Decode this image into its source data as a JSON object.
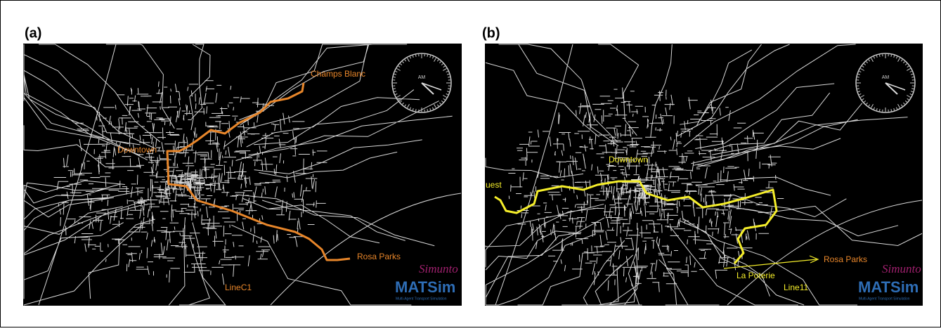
{
  "panels": [
    {
      "label": "(a)",
      "clock": "AM",
      "places": [
        "Champs Blanc",
        "Downtown",
        "Rosa Parks"
      ],
      "line": "LineC1",
      "logo": {
        "brand": "Simunto",
        "name": "MATSim",
        "tagline": "Multi-Agent Transport Simulation"
      }
    },
    {
      "label": "(b)",
      "clock": "AM",
      "places": [
        "uest",
        "Downtown",
        "La Poterie",
        "Rosa Parks"
      ],
      "line": "Line11",
      "logo": {
        "brand": "Simunto",
        "name": "MATSim",
        "tagline": "Multi-Agent Transport Simulation"
      }
    }
  ]
}
